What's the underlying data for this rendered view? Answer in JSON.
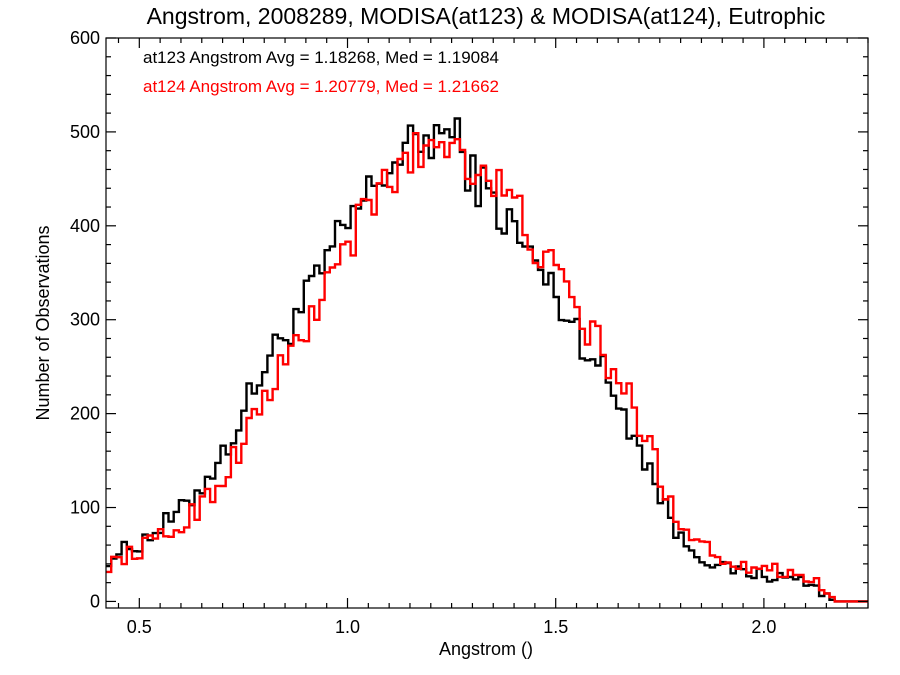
{
  "chart_data": {
    "type": "line",
    "title": "Angstrom, 2008289, MODISA(at123) & MODISA(at124), Eutrophic",
    "xlabel": "Angstrom ()",
    "ylabel": "Number of Observations",
    "xlim": [
      0.42,
      2.25
    ],
    "ylim": [
      -7,
      600
    ],
    "xticks": [
      0.5,
      1.0,
      1.5,
      2.0
    ],
    "xtick_labels": [
      "0.5",
      "1.0",
      "1.5",
      "2.0"
    ],
    "yticks": [
      0,
      100,
      200,
      300,
      400,
      500,
      600
    ],
    "ytick_labels": [
      "0",
      "100",
      "200",
      "300",
      "400",
      "500",
      "600"
    ],
    "grid": false,
    "legend_position": "top-left",
    "bin_width": 0.0125,
    "x_anchor": [
      0.42,
      0.5,
      0.6,
      0.7,
      0.8,
      0.9,
      1.0,
      1.1,
      1.2,
      1.25,
      1.3,
      1.4,
      1.5,
      1.6,
      1.7,
      1.75,
      1.8,
      1.9,
      2.0,
      2.1,
      2.15,
      2.17,
      2.25
    ],
    "series": [
      {
        "name": "at123",
        "label": "at123 Angstrom Avg = 1.18268, Med = 1.19084",
        "color": "#000000",
        "values": [
          45,
          62,
          95,
          155,
          250,
          320,
          400,
          465,
          495,
          500,
          455,
          395,
          325,
          255,
          170,
          115,
          65,
          35,
          28,
          22,
          8,
          0,
          0
        ]
      },
      {
        "name": "at124",
        "label": "at124 Angstrom Avg = 1.20779, Med = 1.21662",
        "color": "#ff0000",
        "values": [
          38,
          55,
          80,
          130,
          215,
          290,
          380,
          450,
          490,
          492,
          470,
          420,
          345,
          275,
          195,
          135,
          82,
          45,
          35,
          28,
          12,
          0,
          0
        ]
      }
    ]
  }
}
